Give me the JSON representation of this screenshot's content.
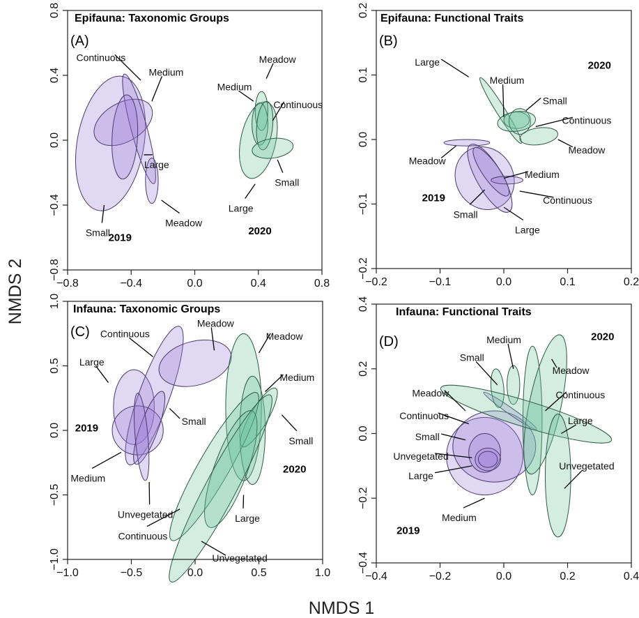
{
  "figure": {
    "xlabel": "NMDS 1",
    "ylabel": "NMDS 2"
  },
  "colors": {
    "2019": "#9b7fd6",
    "2019_stroke": "#4a3a6e",
    "2020": "#6cc49a",
    "2020_stroke": "#2e5a45"
  },
  "chart_data": [
    {
      "type": "scatter",
      "panel": "A",
      "title": "Epifauna: Taxonomic Groups",
      "letter": "(A)",
      "xlim": [
        -0.8,
        0.8
      ],
      "ylim": [
        -0.8,
        0.8
      ],
      "xticks": [
        -0.8,
        -0.4,
        0.0,
        0.4,
        0.8
      ],
      "yticks": [
        -0.8,
        -0.4,
        0.0,
        0.4,
        0.8
      ],
      "xtick_labels": [
        "−0.8",
        "−0.4",
        "0.0",
        "0.4",
        "0.8"
      ],
      "ytick_labels": [
        "−0.8",
        "−0.4",
        "0.0",
        "0.4",
        "0.8"
      ],
      "year_labels": [
        {
          "text": "2019",
          "x": -0.47,
          "y": -0.6
        },
        {
          "text": "2020",
          "x": 0.41,
          "y": -0.56
        }
      ],
      "ellipses": [
        {
          "name": "Small",
          "year": "2019",
          "cx": -0.53,
          "cy": -0.02,
          "rx": 0.21,
          "ry": 0.42,
          "angle": 10
        },
        {
          "name": "Continuous",
          "year": "2019",
          "cx": -0.45,
          "cy": 0.11,
          "rx": 0.2,
          "ry": 0.12,
          "angle": -30
        },
        {
          "name": "Medium",
          "year": "2019",
          "cx": -0.35,
          "cy": 0.07,
          "rx": 0.05,
          "ry": 0.35,
          "angle": -15
        },
        {
          "name": "Large",
          "year": "2019",
          "cx": -0.44,
          "cy": 0.02,
          "rx": 0.08,
          "ry": 0.26,
          "angle": 3
        },
        {
          "name": "Meadow",
          "year": "2019",
          "cx": -0.27,
          "cy": -0.25,
          "rx": 0.04,
          "ry": 0.14,
          "angle": 0
        },
        {
          "name": "Large",
          "year": "2020",
          "cx": 0.4,
          "cy": 0.0,
          "rx": 0.11,
          "ry": 0.24,
          "angle": 12
        },
        {
          "name": "Meadow",
          "year": "2020",
          "cx": 0.42,
          "cy": 0.18,
          "rx": 0.04,
          "ry": 0.12,
          "angle": 0
        },
        {
          "name": "Medium",
          "year": "2020",
          "cx": 0.41,
          "cy": 0.1,
          "rx": 0.05,
          "ry": 0.13,
          "angle": 0
        },
        {
          "name": "Continuous",
          "year": "2020",
          "cx": 0.44,
          "cy": 0.09,
          "rx": 0.05,
          "ry": 0.15,
          "angle": 5
        },
        {
          "name": "Small",
          "year": "2020",
          "cx": 0.49,
          "cy": -0.05,
          "rx": 0.13,
          "ry": 0.06,
          "angle": -8
        }
      ],
      "labels": [
        {
          "text": "Continuous",
          "x": -0.59,
          "y": 0.51,
          "ax": -0.34,
          "ay": 0.37
        },
        {
          "text": "Medium",
          "x": -0.18,
          "y": 0.42,
          "ax": -0.27,
          "ay": 0.24
        },
        {
          "text": "Large",
          "x": -0.24,
          "y": -0.15,
          "ax": -0.32,
          "ay": -0.09
        },
        {
          "text": "Small",
          "x": -0.61,
          "y": -0.57,
          "ax": -0.57,
          "ay": -0.4
        },
        {
          "text": "Meadow",
          "x": -0.07,
          "y": -0.51,
          "ax": -0.21,
          "ay": -0.37
        },
        {
          "text": "Meadow",
          "x": 0.52,
          "y": 0.5,
          "ax": 0.45,
          "ay": 0.38
        },
        {
          "text": "Medium",
          "x": 0.25,
          "y": 0.33,
          "ax": 0.37,
          "ay": 0.24
        },
        {
          "text": "Continuous",
          "x": 0.65,
          "y": 0.22,
          "ax": 0.49,
          "ay": 0.12
        },
        {
          "text": "Large",
          "x": 0.29,
          "y": -0.42,
          "ax": 0.38,
          "ay": -0.27
        },
        {
          "text": "Small",
          "x": 0.58,
          "y": -0.26,
          "ax": 0.52,
          "ay": -0.12
        }
      ]
    },
    {
      "type": "scatter",
      "panel": "B",
      "title": "Epifauna: Functional Traits",
      "letter": "(B)",
      "xlim": [
        -0.2,
        0.2
      ],
      "ylim": [
        -0.2,
        0.2
      ],
      "xticks": [
        -0.2,
        -0.1,
        0.0,
        0.1,
        0.2
      ],
      "yticks": [
        -0.2,
        -0.1,
        0.0,
        0.1,
        0.2
      ],
      "xtick_labels": [
        "−0.2",
        "−0.1",
        "0.0",
        "0.1",
        "0.2"
      ],
      "ytick_labels": [
        "−0.2",
        "−0.1",
        "0.0",
        "0.1",
        "0.2"
      ],
      "year_labels": [
        {
          "text": "2020",
          "x": 0.15,
          "y": 0.115
        },
        {
          "text": "2019",
          "x": -0.11,
          "y": -0.09
        }
      ],
      "ellipses": [
        {
          "name": "Large",
          "year": "2020",
          "cx": -0.005,
          "cy": 0.045,
          "rx": 0.007,
          "ry": 0.06,
          "angle": -32
        },
        {
          "name": "Medium",
          "year": "2020",
          "cx": 0.02,
          "cy": 0.03,
          "rx": 0.02,
          "ry": 0.013,
          "angle": 0
        },
        {
          "name": "Small",
          "year": "2020",
          "cx": 0.025,
          "cy": 0.028,
          "rx": 0.017,
          "ry": 0.02,
          "angle": 0
        },
        {
          "name": "Continuous",
          "year": "2020",
          "cx": 0.02,
          "cy": 0.028,
          "rx": 0.03,
          "ry": 0.015,
          "angle": -8
        },
        {
          "name": "Meadow",
          "year": "2020",
          "cx": 0.055,
          "cy": 0.005,
          "rx": 0.03,
          "ry": 0.013,
          "angle": -8
        },
        {
          "name": "Small",
          "year": "2019",
          "cx": -0.03,
          "cy": -0.06,
          "rx": 0.045,
          "ry": 0.05,
          "angle": -30
        },
        {
          "name": "Large",
          "year": "2019",
          "cx": -0.022,
          "cy": -0.06,
          "rx": 0.02,
          "ry": 0.06,
          "angle": -30
        },
        {
          "name": "Medium",
          "year": "2019",
          "cx": -0.02,
          "cy": -0.05,
          "rx": 0.013,
          "ry": 0.045,
          "angle": -35
        },
        {
          "name": "Meadow",
          "year": "2019",
          "cx": -0.058,
          "cy": -0.005,
          "rx": 0.036,
          "ry": 0.005,
          "angle": 0
        },
        {
          "name": "Continuous",
          "year": "2019",
          "cx": 0.005,
          "cy": -0.063,
          "rx": 0.025,
          "ry": 0.006,
          "angle": 0
        }
      ],
      "labels": [
        {
          "text": "Large",
          "x": -0.12,
          "y": 0.12,
          "ax": -0.055,
          "ay": 0.097
        },
        {
          "text": "Medium",
          "x": 0.005,
          "y": 0.092,
          "ax": 0.0,
          "ay": 0.035
        },
        {
          "text": "Small",
          "x": 0.08,
          "y": 0.06,
          "ax": 0.035,
          "ay": 0.045
        },
        {
          "text": "Continuous",
          "x": 0.13,
          "y": 0.03,
          "ax": 0.05,
          "ay": 0.02
        },
        {
          "text": "Meadow",
          "x": 0.13,
          "y": -0.016,
          "ax": 0.085,
          "ay": 0.0
        },
        {
          "text": "Meadow",
          "x": -0.12,
          "y": -0.033,
          "ax": -0.075,
          "ay": -0.01
        },
        {
          "text": "Medium",
          "x": 0.06,
          "y": -0.054,
          "ax": 0.0,
          "ay": -0.06
        },
        {
          "text": "Continuous",
          "x": 0.1,
          "y": -0.094,
          "ax": 0.025,
          "ay": -0.08
        },
        {
          "text": "Small",
          "x": -0.06,
          "y": -0.116,
          "ax": -0.03,
          "ay": -0.078
        },
        {
          "text": "Large",
          "x": 0.037,
          "y": -0.14,
          "ax": 0.0,
          "ay": -0.105
        }
      ]
    },
    {
      "type": "scatter",
      "panel": "C",
      "title": "Infauna: Taxonomic Groups",
      "letter": "(C)",
      "xlim": [
        -1.0,
        1.0
      ],
      "ylim": [
        -1.0,
        1.0
      ],
      "xticks": [
        -1.0,
        -0.5,
        0.0,
        0.5,
        1.0
      ],
      "yticks": [
        -1.0,
        -0.5,
        0.0,
        0.5,
        1.0
      ],
      "xtick_labels": [
        "−1.0",
        "−0.5",
        "0.0",
        "0.5",
        "1.0"
      ],
      "ytick_labels": [
        "−1.0",
        "−0.5",
        "0.0",
        "0.5",
        "1.0"
      ],
      "year_labels": [
        {
          "text": "2019",
          "x": -0.85,
          "y": 0.02
        },
        {
          "text": "2020",
          "x": 0.78,
          "y": -0.3
        }
      ],
      "ellipses": [
        {
          "name": "Large",
          "year": "2019",
          "cx": -0.48,
          "cy": 0.18,
          "rx": 0.16,
          "ry": 0.29,
          "angle": 0
        },
        {
          "name": "Continuous",
          "year": "2019",
          "cx": -0.32,
          "cy": 0.27,
          "rx": 0.12,
          "ry": 0.57,
          "angle": 20
        },
        {
          "name": "Meadow",
          "year": "2019",
          "cx": 0.0,
          "cy": 0.52,
          "rx": 0.29,
          "ry": 0.17,
          "angle": -15
        },
        {
          "name": "Medium",
          "year": "2019",
          "cx": -0.45,
          "cy": 0.0,
          "rx": 0.2,
          "ry": 0.19,
          "angle": 0
        },
        {
          "name": "Small",
          "year": "2019",
          "cx": -0.36,
          "cy": 0.02,
          "rx": 0.07,
          "ry": 0.3,
          "angle": 20
        },
        {
          "name": "Unvegetated",
          "year": "2019",
          "cx": -0.42,
          "cy": -0.05,
          "rx": 0.05,
          "ry": 0.34,
          "angle": -5
        },
        {
          "name": "Meadow",
          "year": "2020",
          "cx": 0.38,
          "cy": 0.18,
          "rx": 0.14,
          "ry": 0.57,
          "angle": 0
        },
        {
          "name": "Medium",
          "year": "2020",
          "cx": 0.45,
          "cy": 0.0,
          "rx": 0.1,
          "ry": 0.42,
          "angle": 0
        },
        {
          "name": "Small",
          "year": "2020",
          "cx": 0.5,
          "cy": 0.1,
          "rx": 0.07,
          "ry": 0.26,
          "angle": 30
        },
        {
          "name": "Continuous",
          "year": "2020",
          "cx": 0.15,
          "cy": -0.28,
          "rx": 0.12,
          "ry": 0.66,
          "angle": 30
        },
        {
          "name": "Large",
          "year": "2020",
          "cx": 0.28,
          "cy": -0.3,
          "rx": 0.13,
          "ry": 0.48,
          "angle": 20
        },
        {
          "name": "Unvegetated",
          "year": "2020",
          "cx": 0.2,
          "cy": -0.45,
          "rx": 0.12,
          "ry": 0.82,
          "angle": 28
        }
      ],
      "labels": [
        {
          "text": "Continuous",
          "x": -0.55,
          "y": 0.75,
          "ax": -0.33,
          "ay": 0.57
        },
        {
          "text": "Meadow",
          "x": 0.16,
          "y": 0.83,
          "ax": 0.15,
          "ay": 0.62
        },
        {
          "text": "Meadow",
          "x": 0.7,
          "y": 0.73,
          "ax": 0.5,
          "ay": 0.6
        },
        {
          "text": "Large",
          "x": -0.81,
          "y": 0.53,
          "ax": -0.68,
          "ay": 0.37
        },
        {
          "text": "Medium",
          "x": 0.8,
          "y": 0.41,
          "ax": 0.55,
          "ay": 0.3
        },
        {
          "text": "Small",
          "x": -0.01,
          "y": 0.07,
          "ax": -0.2,
          "ay": 0.17
        },
        {
          "text": "Small",
          "x": 0.83,
          "y": -0.08,
          "ax": 0.68,
          "ay": 0.12
        },
        {
          "text": "Medium",
          "x": -0.84,
          "y": -0.37,
          "ax": -0.58,
          "ay": -0.17
        },
        {
          "text": "Unvegetated",
          "x": -0.39,
          "y": -0.65,
          "ax": -0.36,
          "ay": -0.4
        },
        {
          "text": "Large",
          "x": 0.41,
          "y": -0.68,
          "ax": 0.38,
          "ay": -0.5
        },
        {
          "text": "Continuous",
          "x": -0.41,
          "y": -0.82,
          "ax": -0.12,
          "ay": -0.61
        },
        {
          "text": "Unvegetated",
          "x": 0.35,
          "y": -0.99,
          "ax": 0.05,
          "ay": -0.86
        }
      ]
    },
    {
      "type": "scatter",
      "panel": "D",
      "title": "Infauna: Functional Traits",
      "letter": "(D)",
      "xlim": [
        -0.4,
        0.4
      ],
      "ylim": [
        -0.4,
        0.4
      ],
      "xticks": [
        -0.4,
        -0.2,
        0.0,
        0.2,
        0.4
      ],
      "yticks": [
        -0.4,
        -0.2,
        0.0,
        0.2,
        0.4
      ],
      "xtick_labels": [
        "−0.4",
        "−0.2",
        "0.0",
        "0.2",
        "0.4"
      ],
      "ytick_labels": [
        "−0.4",
        "−0.2",
        "0.0",
        "0.2",
        "0.4"
      ],
      "year_labels": [
        {
          "text": "2020",
          "x": 0.31,
          "y": 0.3
        },
        {
          "text": "2019",
          "x": -0.3,
          "y": -0.3
        }
      ],
      "ellipses": [
        {
          "name": "Medium",
          "year": "2019",
          "cx": -0.06,
          "cy": -0.07,
          "rx": 0.12,
          "ry": 0.12,
          "angle": 0
        },
        {
          "name": "Continuous",
          "year": "2019",
          "cx": -0.03,
          "cy": -0.04,
          "rx": 0.13,
          "ry": 0.11,
          "angle": 0
        },
        {
          "name": "Small",
          "year": "2019",
          "cx": -0.06,
          "cy": -0.06,
          "rx": 0.05,
          "ry": 0.06,
          "angle": 0
        },
        {
          "name": "Large",
          "year": "2019",
          "cx": -0.05,
          "cy": -0.08,
          "rx": 0.04,
          "ry": 0.035,
          "angle": 0
        },
        {
          "name": "Unvegetated",
          "year": "2019",
          "cx": -0.05,
          "cy": -0.08,
          "rx": 0.03,
          "ry": 0.025,
          "angle": 0
        },
        {
          "name": "Meadow",
          "year": "2019",
          "cx": 0.02,
          "cy": 0.07,
          "rx": 0.01,
          "ry": 0.1,
          "angle": -55
        },
        {
          "name": "Small",
          "year": "2020",
          "cx": -0.02,
          "cy": 0.14,
          "rx": 0.02,
          "ry": 0.06,
          "angle": -5
        },
        {
          "name": "Medium",
          "year": "2020",
          "cx": 0.03,
          "cy": 0.15,
          "rx": 0.02,
          "ry": 0.06,
          "angle": 0
        },
        {
          "name": "Continuous",
          "year": "2020",
          "cx": 0.09,
          "cy": 0.04,
          "rx": 0.03,
          "ry": 0.23,
          "angle": 0
        },
        {
          "name": "Meadow",
          "year": "2020",
          "cx": 0.13,
          "cy": 0.09,
          "rx": 0.05,
          "ry": 0.22,
          "angle": 12
        },
        {
          "name": "Large",
          "year": "2020",
          "cx": 0.07,
          "cy": 0.06,
          "rx": 0.28,
          "ry": 0.04,
          "angle": 17
        },
        {
          "name": "Unvegetated",
          "year": "2020",
          "cx": 0.17,
          "cy": -0.13,
          "rx": 0.04,
          "ry": 0.19,
          "angle": 0
        }
      ],
      "labels": [
        {
          "text": "Medium",
          "x": 0.0,
          "y": 0.29,
          "ax": 0.03,
          "ay": 0.2
        },
        {
          "text": "Small",
          "x": -0.1,
          "y": 0.235,
          "ax": -0.02,
          "ay": 0.15
        },
        {
          "text": "Meadow",
          "x": 0.21,
          "y": 0.195,
          "ax": 0.15,
          "ay": 0.23
        },
        {
          "text": "Meadow",
          "x": -0.23,
          "y": 0.125,
          "ax": -0.12,
          "ay": 0.07
        },
        {
          "text": "Continuous",
          "x": 0.24,
          "y": 0.12,
          "ax": 0.13,
          "ay": 0.07
        },
        {
          "text": "Continuous",
          "x": -0.25,
          "y": 0.055,
          "ax": -0.11,
          "ay": 0.03
        },
        {
          "text": "Large",
          "x": 0.24,
          "y": 0.04,
          "ax": 0.18,
          "ay": 0.0
        },
        {
          "text": "Small",
          "x": -0.24,
          "y": -0.01,
          "ax": -0.12,
          "ay": -0.02
        },
        {
          "text": "Unvegetated",
          "x": -0.26,
          "y": -0.07,
          "ax": -0.1,
          "ay": -0.075
        },
        {
          "text": "Unvegetated",
          "x": 0.26,
          "y": -0.1,
          "ax": 0.19,
          "ay": -0.17
        },
        {
          "text": "Large",
          "x": -0.26,
          "y": -0.13,
          "ax": -0.1,
          "ay": -0.1
        },
        {
          "text": "Medium",
          "x": -0.14,
          "y": -0.26,
          "ax": -0.06,
          "ay": -0.2
        }
      ]
    }
  ]
}
